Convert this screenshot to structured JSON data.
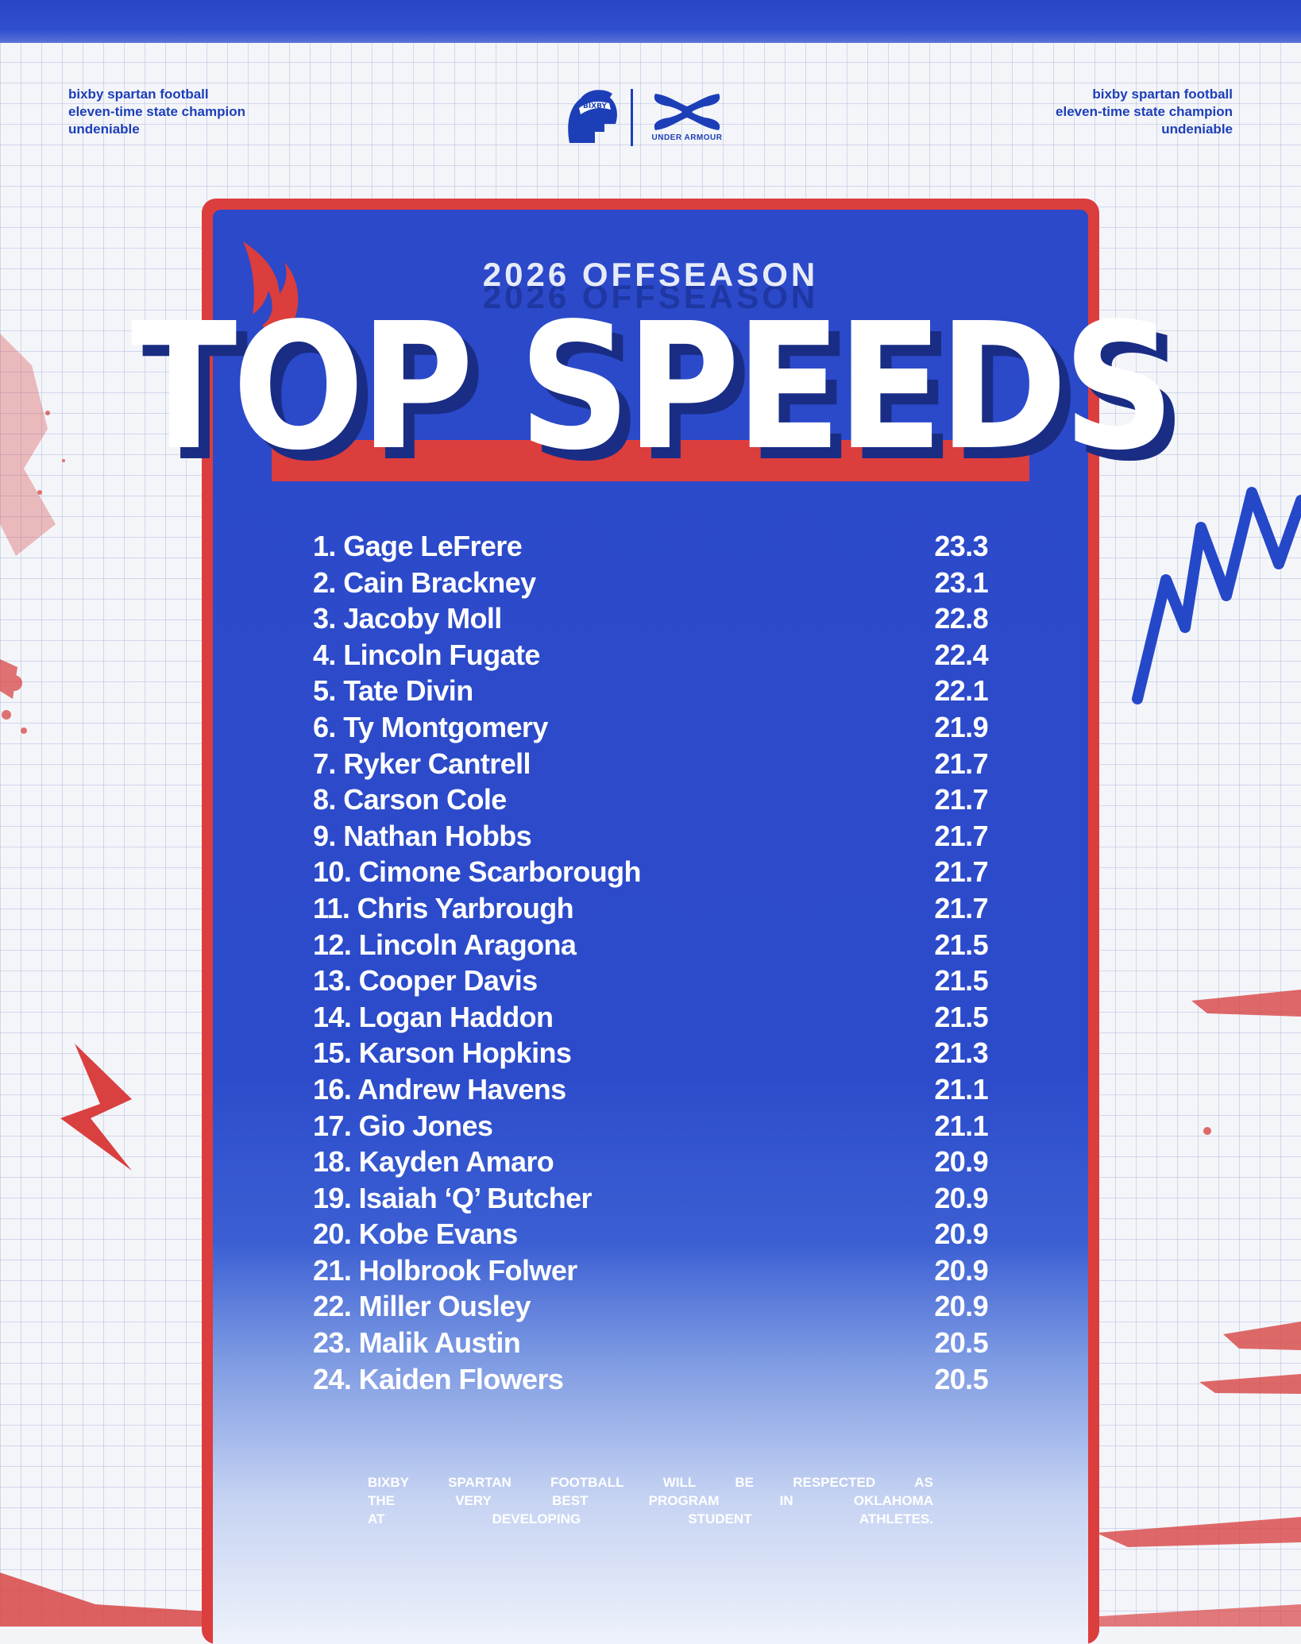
{
  "header": {
    "left_lines": [
      "bixby spartan football",
      "eleven-time state champion",
      "undeniable"
    ],
    "right_lines": [
      "bixby spartan football",
      "eleven-time state champion",
      "undeniable"
    ],
    "spartan_logo_text": "BIXBY",
    "partner_logo_text": "UNDER ARMOUR"
  },
  "poster": {
    "subtitle": "2026 OFFSEASON",
    "title": "TOP SPEEDS"
  },
  "rankings": [
    {
      "name": "1. Gage LeFrere",
      "speed": "23.3"
    },
    {
      "name": "2. Cain Brackney",
      "speed": "23.1"
    },
    {
      "name": "3. Jacoby Moll",
      "speed": "22.8"
    },
    {
      "name": "4. Lincoln Fugate",
      "speed": "22.4"
    },
    {
      "name": "5. Tate Divin",
      "speed": "22.1"
    },
    {
      "name": "6. Ty Montgomery",
      "speed": "21.9"
    },
    {
      "name": "7. Ryker Cantrell",
      "speed": "21.7"
    },
    {
      "name": "8. Carson Cole",
      "speed": "21.7"
    },
    {
      "name": "9. Nathan Hobbs",
      "speed": "21.7"
    },
    {
      "name": "10. Cimone Scarborough",
      "speed": "21.7"
    },
    {
      "name": "11. Chris Yarbrough",
      "speed": "21.7"
    },
    {
      "name": "12. Lincoln Aragona",
      "speed": "21.5"
    },
    {
      "name": "13. Cooper Davis",
      "speed": "21.5"
    },
    {
      "name": "14. Logan Haddon",
      "speed": "21.5"
    },
    {
      "name": "15. Karson Hopkins",
      "speed": "21.3"
    },
    {
      "name": "16. Andrew Havens",
      "speed": "21.1"
    },
    {
      "name": "17. Gio Jones",
      "speed": "21.1"
    },
    {
      "name": "18. Kayden Amaro",
      "speed": "20.9"
    },
    {
      "name": "19. Isaiah ‘Q’ Butcher",
      "speed": "20.9"
    },
    {
      "name": "20. Kobe Evans",
      "speed": "20.9"
    },
    {
      "name": "21. Holbrook Folwer",
      "speed": "20.9"
    },
    {
      "name": "22. Miller Ousley",
      "speed": "20.9"
    },
    {
      "name": "23. Malik Austin",
      "speed": "20.5"
    },
    {
      "name": "24. Kaiden Flowers",
      "speed": "20.5"
    }
  ],
  "mission": {
    "lines": [
      [
        "BIXBY",
        "SPARTAN",
        "FOOTBALL",
        "WILL",
        "BE",
        "RESPECTED",
        "AS"
      ],
      [
        "THE",
        "VERY",
        "BEST",
        "PROGRAM",
        "IN",
        "OKLAHOMA"
      ],
      [
        "AT",
        "DEVELOPING",
        "STUDENT",
        "ATHLETES."
      ]
    ]
  },
  "colors": {
    "brand_blue": "#2b49c9",
    "brand_red": "#dc3d3d",
    "text_white": "#ffffff"
  },
  "icons": [
    "spartan-helmet-icon",
    "under-armour-icon",
    "flame-icon"
  ]
}
